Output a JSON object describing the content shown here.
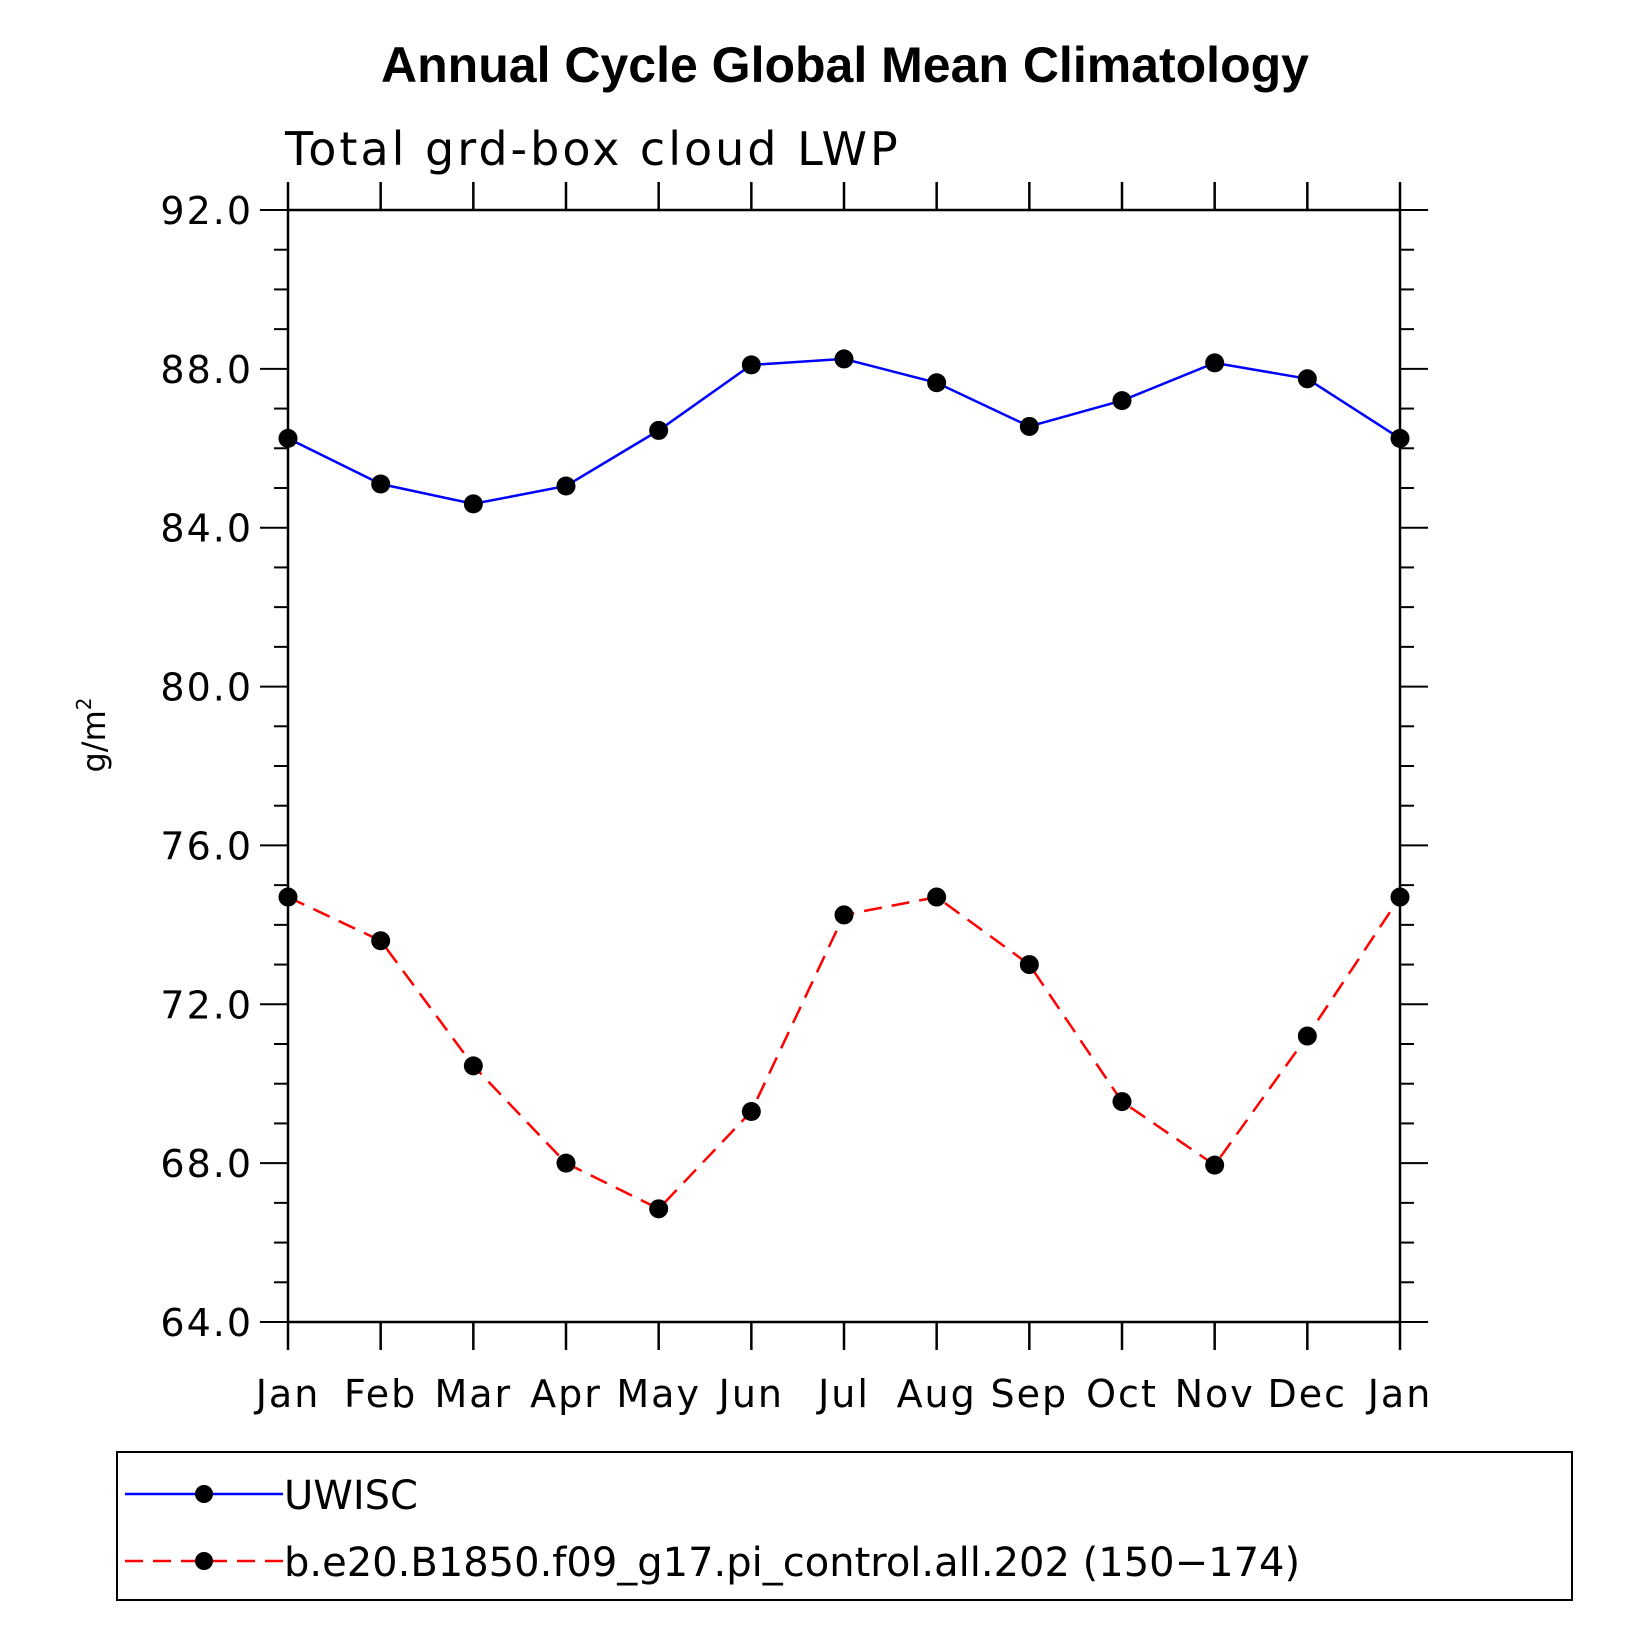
{
  "chart_data": {
    "type": "line",
    "title": "Annual Cycle Global Mean Climatology",
    "subtitle": "Total grd-box cloud LWP",
    "ylabel": "g/m",
    "ylabel_superscript": "2",
    "xlabel": "",
    "categories": [
      "Jan",
      "Feb",
      "Mar",
      "Apr",
      "May",
      "Jun",
      "Jul",
      "Aug",
      "Sep",
      "Oct",
      "Nov",
      "Dec",
      "Jan"
    ],
    "ylim": [
      64.0,
      92.0
    ],
    "yticks": [
      "64.0",
      "68.0",
      "72.0",
      "76.0",
      "80.0",
      "84.0",
      "88.0",
      "92.0"
    ],
    "grid": false,
    "legend_position": "bottom",
    "series": [
      {
        "name": "UWISC",
        "color": "#0000ff",
        "dash": "solid",
        "marker": "filled-circle",
        "values": [
          86.25,
          85.1,
          84.6,
          85.05,
          86.45,
          88.1,
          88.25,
          87.65,
          86.55,
          87.2,
          88.15,
          87.75,
          86.25
        ]
      },
      {
        "name": "b.e20.B1850.f09_g17.pi_control.all.202 (150−174)",
        "color": "#ff0000",
        "dash": "dashed",
        "marker": "filled-circle",
        "values": [
          74.7,
          73.6,
          70.45,
          68.0,
          66.85,
          69.3,
          74.25,
          74.7,
          73.0,
          69.55,
          67.95,
          71.2,
          74.7
        ]
      }
    ]
  }
}
